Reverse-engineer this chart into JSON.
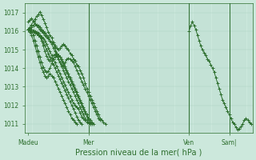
{
  "bg_color": "#cce8dc",
  "line_color": "#2d6e2d",
  "grid_color": "#a8cfc0",
  "axis_label_color": "#2d6e2d",
  "tick_label_color": "#2d6e2d",
  "xlabel": "Pression niveau de la mer( hPa )",
  "ylim": [
    1010.5,
    1017.5
  ],
  "yticks": [
    1011,
    1012,
    1013,
    1014,
    1015,
    1016,
    1017
  ],
  "xtick_labels": [
    "Madeu",
    "Mer",
    "Ven",
    "Sam|"
  ],
  "xtick_positions": [
    0,
    36,
    96,
    120
  ],
  "total_points": 134,
  "series": [
    {
      "xstart": 0,
      "data": [
        1016.1,
        1016.05,
        1016.0,
        1015.95,
        1015.9,
        1015.85,
        1015.8,
        1015.7,
        1015.6,
        1015.4,
        1015.2,
        1015.0,
        1014.8,
        1014.6,
        1014.4,
        1014.2,
        1014.0,
        1013.8,
        1013.6,
        1013.4,
        1013.2,
        1013.0,
        1012.8,
        1012.6,
        1012.4,
        1012.2,
        1012.0,
        1011.8,
        1011.6,
        1011.4,
        1011.2,
        1011.1,
        1011.0
      ]
    },
    {
      "xstart": 0,
      "data": [
        1016.1,
        1016.15,
        1016.2,
        1016.3,
        1016.4,
        1016.35,
        1016.3,
        1016.2,
        1016.1,
        1016.0,
        1015.9,
        1015.8,
        1015.7,
        1015.5,
        1015.3,
        1015.1,
        1014.9,
        1014.7,
        1014.5,
        1014.3,
        1014.1,
        1013.9,
        1013.7,
        1013.5,
        1013.3,
        1013.1,
        1012.9,
        1012.7,
        1012.5,
        1012.3,
        1012.1,
        1011.9,
        1011.7,
        1011.5,
        1011.3,
        1011.2,
        1011.1,
        1011.0
      ]
    },
    {
      "xstart": 0,
      "data": [
        1016.1,
        1016.2,
        1016.35,
        1016.5,
        1016.65,
        1016.8,
        1016.9,
        1017.05,
        1016.85,
        1016.65,
        1016.45,
        1016.2,
        1015.95,
        1015.8,
        1015.65,
        1015.4,
        1015.1,
        1014.8,
        1014.5,
        1014.3,
        1014.2,
        1014.1,
        1014.3,
        1014.5,
        1014.55,
        1014.5,
        1014.4,
        1014.3,
        1014.1,
        1013.9,
        1013.7,
        1013.5,
        1013.3,
        1013.1,
        1012.9,
        1012.7,
        1012.5,
        1012.3,
        1012.1,
        1011.9,
        1011.7,
        1011.5,
        1011.3,
        1011.2
      ]
    },
    {
      "xstart": 0,
      "data": [
        1016.1,
        1016.1,
        1016.1,
        1016.05,
        1016.0,
        1015.95,
        1015.9,
        1015.8,
        1015.5,
        1015.2,
        1014.9,
        1014.65,
        1014.5,
        1014.4,
        1014.55,
        1014.7,
        1014.75,
        1014.8,
        1014.7,
        1014.6,
        1014.4,
        1014.2,
        1014.0,
        1013.8,
        1013.6,
        1013.4,
        1013.2,
        1013.0,
        1012.8,
        1012.6,
        1012.4,
        1012.2,
        1012.0,
        1011.8,
        1011.6,
        1011.4,
        1011.2,
        1011.1,
        1011.0
      ]
    },
    {
      "xstart": 0,
      "data": [
        1016.1,
        1016.05,
        1016.0,
        1015.8,
        1015.5,
        1015.2,
        1014.9,
        1014.6,
        1014.3,
        1014.05,
        1013.9,
        1013.8,
        1013.85,
        1014.0,
        1014.25,
        1014.5,
        1014.6,
        1014.65,
        1014.7,
        1014.6,
        1014.5,
        1014.3,
        1014.1,
        1013.9,
        1013.7,
        1013.5,
        1013.3,
        1013.1,
        1012.9,
        1012.7,
        1012.5,
        1012.3,
        1012.1,
        1011.9,
        1011.7,
        1011.5,
        1011.3,
        1011.2,
        1011.1,
        1011.0
      ]
    },
    {
      "xstart": 0,
      "data": [
        1016.1,
        1015.95,
        1015.8,
        1015.5,
        1015.2,
        1014.9,
        1014.6,
        1014.3,
        1014.0,
        1013.8,
        1013.6,
        1013.5,
        1013.6,
        1013.7,
        1013.6,
        1013.5,
        1013.3,
        1013.1,
        1012.9,
        1012.7,
        1012.5,
        1012.3,
        1012.1,
        1011.9,
        1011.7,
        1011.5,
        1011.3,
        1011.2,
        1011.1,
        1011.0
      ]
    },
    {
      "xstart": 0,
      "data": [
        1016.5,
        1016.6,
        1016.7,
        1016.55,
        1016.4,
        1016.3,
        1016.2,
        1016.1,
        1016.0,
        1015.9,
        1015.8,
        1015.7,
        1015.6,
        1015.5,
        1015.4,
        1015.3,
        1015.2,
        1015.1,
        1015.0,
        1015.1,
        1015.2,
        1015.3,
        1015.2,
        1015.1,
        1015.0,
        1014.8,
        1014.7,
        1014.5,
        1014.4,
        1014.2,
        1014.1,
        1013.9,
        1013.7,
        1013.5,
        1013.2,
        1012.9,
        1012.7,
        1012.5,
        1012.3,
        1012.1,
        1011.9,
        1011.7,
        1011.5,
        1011.3,
        1011.2,
        1011.1,
        1011.0
      ]
    },
    {
      "xstart": 0,
      "data": [
        1016.1,
        1016.05,
        1016.0,
        1015.95,
        1015.9,
        1015.85,
        1015.8,
        1015.75,
        1015.7,
        1015.6,
        1015.5,
        1015.3,
        1015.1,
        1014.9,
        1014.7,
        1014.5,
        1014.3,
        1014.1,
        1013.9,
        1013.7,
        1013.5,
        1013.3,
        1013.1,
        1012.9,
        1012.7,
        1012.5,
        1012.3,
        1012.1,
        1012.0,
        1011.9,
        1011.8,
        1011.6,
        1011.4,
        1011.3,
        1011.2,
        1011.1,
        1011.05,
        1011.0
      ]
    },
    {
      "xstart": 96,
      "data": [
        1016.0,
        1016.3,
        1016.5,
        1016.3,
        1016.1,
        1015.8,
        1015.5,
        1015.2,
        1015.0,
        1014.85,
        1014.7,
        1014.5,
        1014.4,
        1014.2,
        1014.0,
        1013.8,
        1013.5,
        1013.2,
        1012.9,
        1012.6,
        1012.3,
        1012.1,
        1011.9,
        1011.7,
        1011.5,
        1011.3,
        1011.1,
        1011.0,
        1010.8,
        1010.7,
        1010.75,
        1010.85,
        1011.0,
        1011.2,
        1011.3,
        1011.2,
        1011.1,
        1011.0
      ]
    }
  ],
  "marker": "+",
  "markersize": 2.5,
  "linewidth": 0.7
}
